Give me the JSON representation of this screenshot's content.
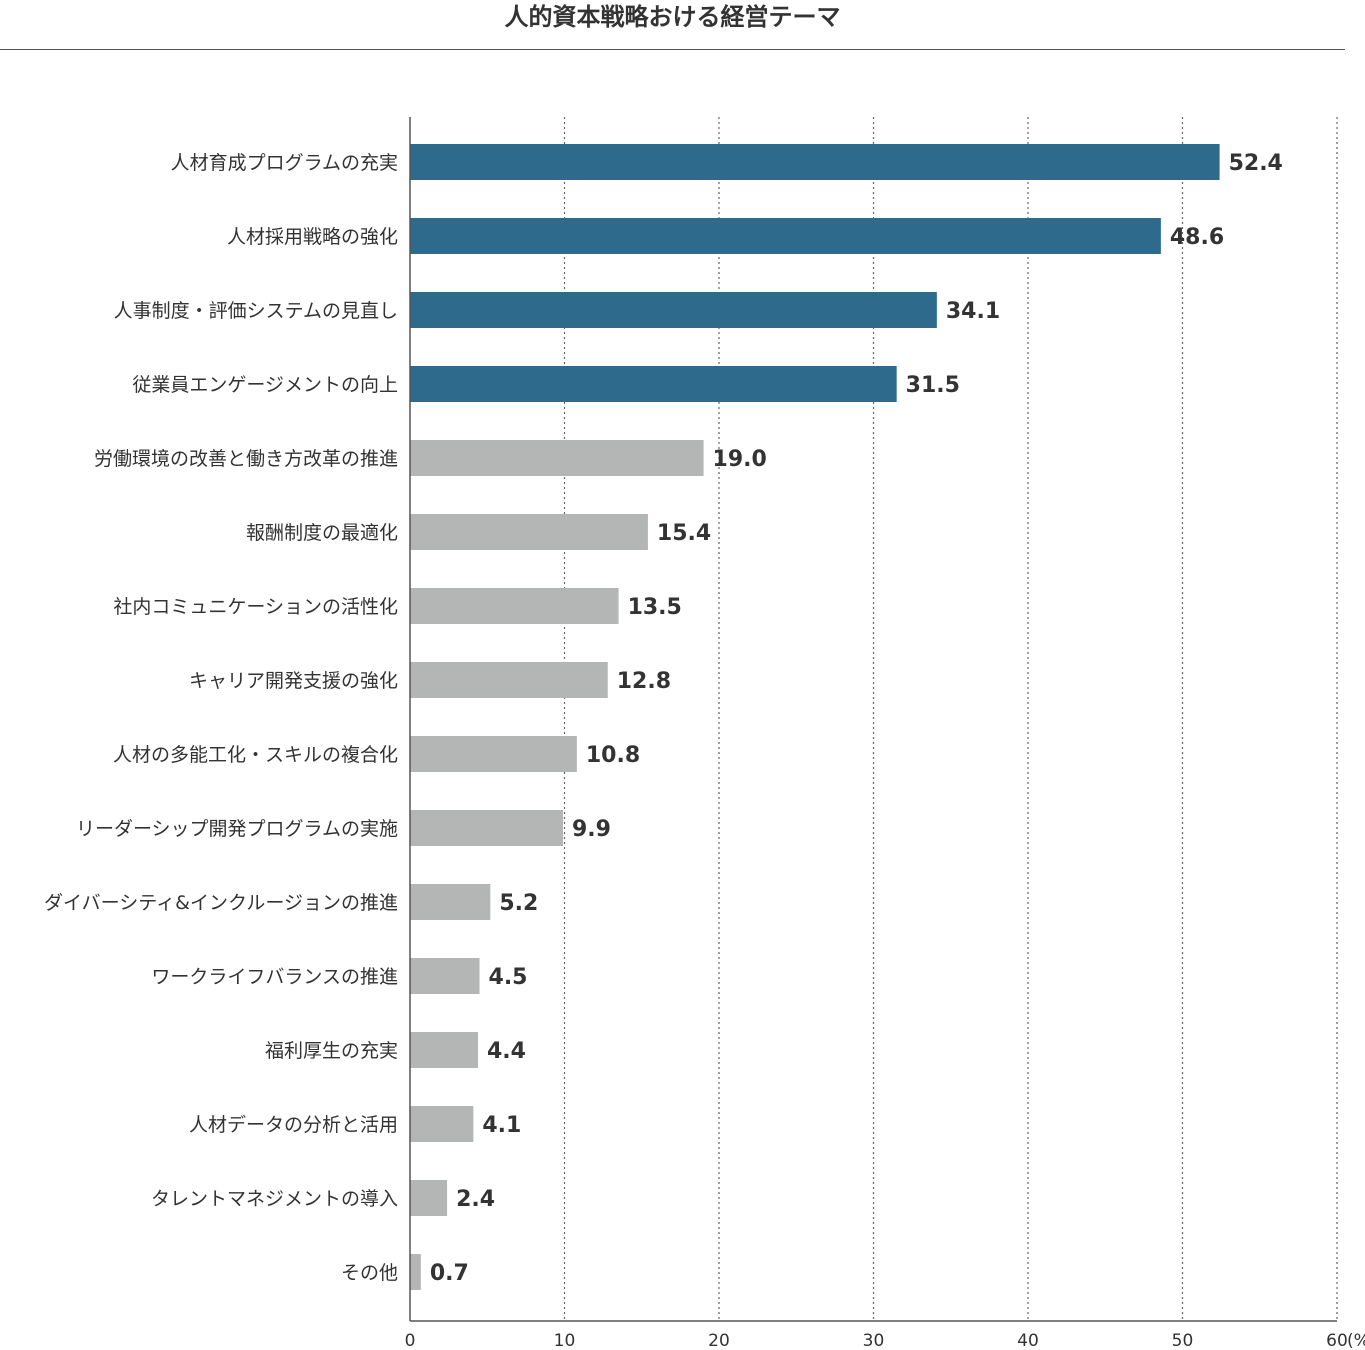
{
  "title": "人的資本戦略おける経営テーマ",
  "colors": {
    "highlight": "#2d6a8c",
    "normal": "#b4b5b5",
    "axis": "#555555",
    "grid": "#666666"
  },
  "chart_data": {
    "type": "bar",
    "orientation": "horizontal",
    "title": "人的資本戦略おける経営テーマ",
    "categories": [
      "人材育成プログラムの充実",
      "人材採用戦略の強化",
      "人事制度・評価システムの見直し",
      "従業員エンゲージメントの向上",
      "労働環境の改善と働き方改革の推進",
      "報酬制度の最適化",
      "社内コミュニケーションの活性化",
      "キャリア開発支援の強化",
      "人材の多能工化・スキルの複合化",
      "リーダーシップ開発プログラムの実施",
      "ダイバーシティ&インクルージョンの推進",
      "ワークライフバランスの推進",
      "福利厚生の充実",
      "人材データの分析と活用",
      "タレントマネジメントの導入",
      "その他"
    ],
    "values": [
      52.4,
      48.6,
      34.1,
      31.5,
      19.0,
      15.4,
      13.5,
      12.8,
      10.8,
      9.9,
      5.2,
      4.5,
      4.4,
      4.1,
      2.4,
      0.7
    ],
    "value_labels": [
      "52.4",
      "48.6",
      "34.1",
      "31.5",
      "19.0",
      "15.4",
      "13.5",
      "12.8",
      "10.8",
      "9.9",
      "5.2",
      "4.5",
      "4.4",
      "4.1",
      "2.4",
      "0.7"
    ],
    "highlighted_count": 4,
    "xlim": [
      0,
      60
    ],
    "xticks": [
      0,
      10,
      20,
      30,
      40,
      50,
      60
    ],
    "xtick_labels": [
      "0",
      "10",
      "20",
      "30",
      "40",
      "50",
      "60"
    ],
    "x_unit": "(%)",
    "grid": "vertical dotted"
  }
}
